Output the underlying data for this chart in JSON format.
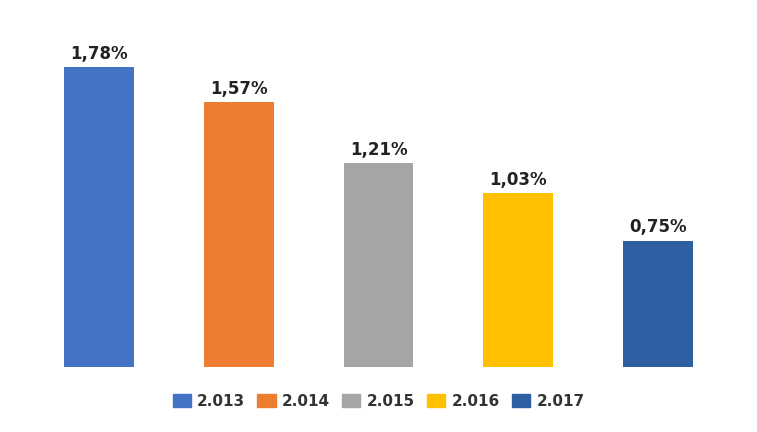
{
  "categories": [
    "2.013",
    "2.014",
    "2.015",
    "2.016",
    "2.017"
  ],
  "values": [
    1.78,
    1.57,
    1.21,
    1.03,
    0.75
  ],
  "labels": [
    "1,78%",
    "1,57%",
    "1,21%",
    "1,03%",
    "0,75%"
  ],
  "bar_colors": [
    "#4472C4",
    "#ED7D31",
    "#A5A5A5",
    "#FFC000",
    "#2E5FA3"
  ],
  "legend_labels": [
    "2.013",
    "2.014",
    "2.015",
    "2.016",
    "2.017"
  ],
  "legend_colors": [
    "#4472C4",
    "#ED7D31",
    "#A5A5A5",
    "#FFC000",
    "#2E5FA3"
  ],
  "ylim": [
    0,
    2.1
  ],
  "background_color": "#FFFFFF",
  "grid_color": "#D0D0D0",
  "label_fontsize": 12,
  "legend_fontsize": 11,
  "bar_width": 0.5
}
